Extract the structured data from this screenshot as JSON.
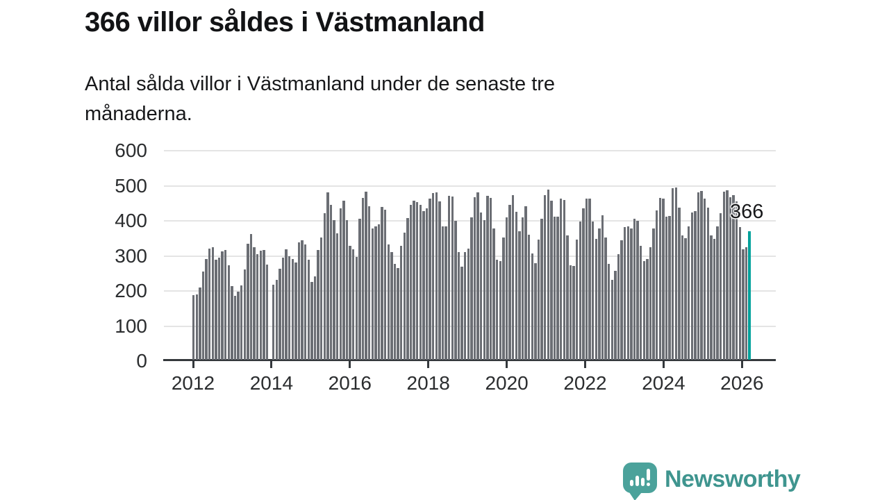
{
  "header": {
    "title": "366 villor såldes i Västmanland",
    "subtitle_line1": "Antal sålda villor i Västmanland under de senaste tre",
    "subtitle_line2": "månaderna."
  },
  "chart_data": {
    "type": "bar",
    "title": "366 villor såldes i Västmanland",
    "subtitle": "Antal sålda villor i Västmanland under de senaste tre månaderna.",
    "x_frequency": "monthly",
    "x_start_year": 2012,
    "ylim": [
      0,
      600
    ],
    "grid": "horizontal",
    "yticks": [
      0,
      100,
      200,
      300,
      400,
      500,
      600
    ],
    "xticks": [
      "2012",
      "2014",
      "2016",
      "2018",
      "2020",
      "2022",
      "2024",
      "2026"
    ],
    "bar_color": "#6b6e74",
    "highlight_color": "#00a19b",
    "highlight_value": 366,
    "highlight_label": "366",
    "values": [
      185,
      186,
      205,
      252,
      288,
      316,
      320,
      286,
      291,
      308,
      313,
      270,
      210,
      182,
      194,
      212,
      258,
      330,
      358,
      321,
      301,
      311,
      313,
      271,
      null,
      213,
      228,
      260,
      292,
      315,
      296,
      287,
      277,
      334,
      340,
      328,
      286,
      222,
      238,
      312,
      348,
      417,
      477,
      442,
      398,
      361,
      432,
      453,
      399,
      324,
      314,
      293,
      401,
      462,
      480,
      437,
      375,
      380,
      386,
      435,
      427,
      329,
      306,
      273,
      261,
      324,
      362,
      404,
      442,
      454,
      450,
      441,
      424,
      431,
      460,
      475,
      478,
      452,
      380,
      380,
      467,
      465,
      397,
      306,
      266,
      307,
      316,
      406,
      464,
      477,
      419,
      398,
      467,
      461,
      375,
      286,
      281,
      349,
      405,
      441,
      470,
      421,
      366,
      405,
      437,
      357,
      303,
      276,
      342,
      401,
      470,
      485,
      454,
      408,
      408,
      460,
      456,
      355,
      270,
      268,
      342,
      395,
      431,
      459,
      459,
      395,
      345,
      375,
      411,
      349,
      274,
      228,
      253,
      301,
      340,
      378,
      380,
      375,
      401,
      397,
      324,
      281,
      287,
      320,
      375,
      426,
      462,
      459,
      408,
      410,
      489,
      491,
      434,
      355,
      347,
      380,
      419,
      423,
      478,
      482,
      460,
      433,
      354,
      345,
      380,
      417,
      480,
      484,
      464,
      470,
      452,
      378,
      315,
      321
    ]
  },
  "footer": {
    "brand": "Newsworthy"
  }
}
